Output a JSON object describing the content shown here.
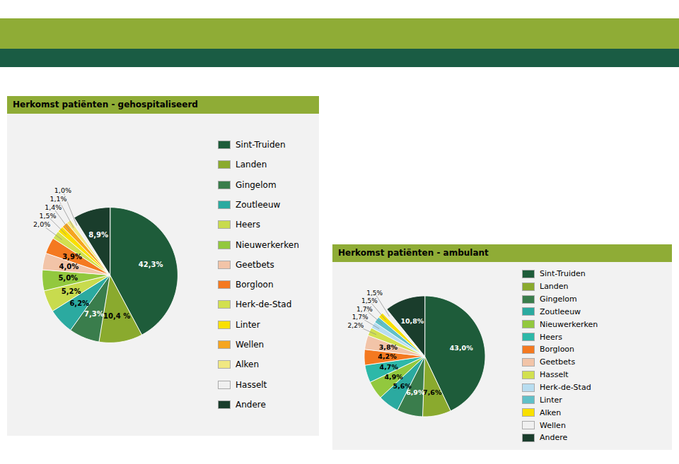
{
  "chart_data": [
    {
      "type": "pie",
      "title": "Herkomst patiënten - gehospitaliseerd",
      "categories": [
        "Sint-Truiden",
        "Landen",
        "Gingelom",
        "Zoutleeuw",
        "Heers",
        "Nieuwerkerken",
        "Geetbets",
        "Borgloon",
        "Herk-de-Stad",
        "Linter",
        "Wellen",
        "Alken",
        "Hasselt",
        "Andere"
      ],
      "values": [
        42.3,
        10.4,
        7.3,
        6.2,
        5.2,
        5.0,
        4.0,
        3.9,
        2.0,
        1.5,
        1.4,
        1.1,
        1.0,
        8.9
      ],
      "value_labels": [
        "42,3%",
        "10,4 %",
        "7,3%",
        "6,2%",
        "5,2%",
        "5,0%",
        "4,0%",
        "3,9%",
        "2,0%",
        "1,5%",
        "1,4%",
        "1,1%",
        "1,0%",
        "8,9%"
      ],
      "colors": [
        "#1e5c3a",
        "#8aaa2e",
        "#3a7d4c",
        "#2baaa0",
        "#c8db4e",
        "#92c83e",
        "#f2c4a8",
        "#f47920",
        "#d2e050",
        "#f9e000",
        "#f5a520",
        "#f0e882",
        "#f0f0f0",
        "#1a3d2c"
      ],
      "data_labels": true,
      "legend": "right"
    },
    {
      "type": "pie",
      "title": "Herkomst patiënten - ambulant",
      "categories": [
        "Sint-Truiden",
        "Landen",
        "Gingelom",
        "Zoutleeuw",
        "Nieuwerkerken",
        "Heers",
        "Borgloon",
        "Geetbets",
        "Hasselt",
        "Herk-de-Stad",
        "Linter",
        "Alken",
        "Wellen",
        "Andere"
      ],
      "values": [
        43.0,
        7.6,
        6.9,
        5.6,
        4.9,
        4.7,
        4.2,
        3.8,
        2.2,
        1.7,
        1.7,
        1.5,
        1.5,
        10.8
      ],
      "value_labels": [
        "43,0%",
        "7,6%",
        "6,9%",
        "5,6%",
        "4,9%",
        "4,7%",
        "4,2%",
        "3,8%",
        "2,2%",
        "1,7%",
        "1,7%",
        "1,5%",
        "1,5%",
        "10,8%"
      ],
      "colors": [
        "#1e5c3a",
        "#8aaa2e",
        "#3a7d4c",
        "#2baaa0",
        "#92c83e",
        "#2db8a8",
        "#f47920",
        "#f2c4a8",
        "#d2e050",
        "#b8ddf0",
        "#60c0c8",
        "#f9e000",
        "#f0f0f0",
        "#1a3d2c"
      ],
      "data_labels": true,
      "legend": "right"
    }
  ]
}
